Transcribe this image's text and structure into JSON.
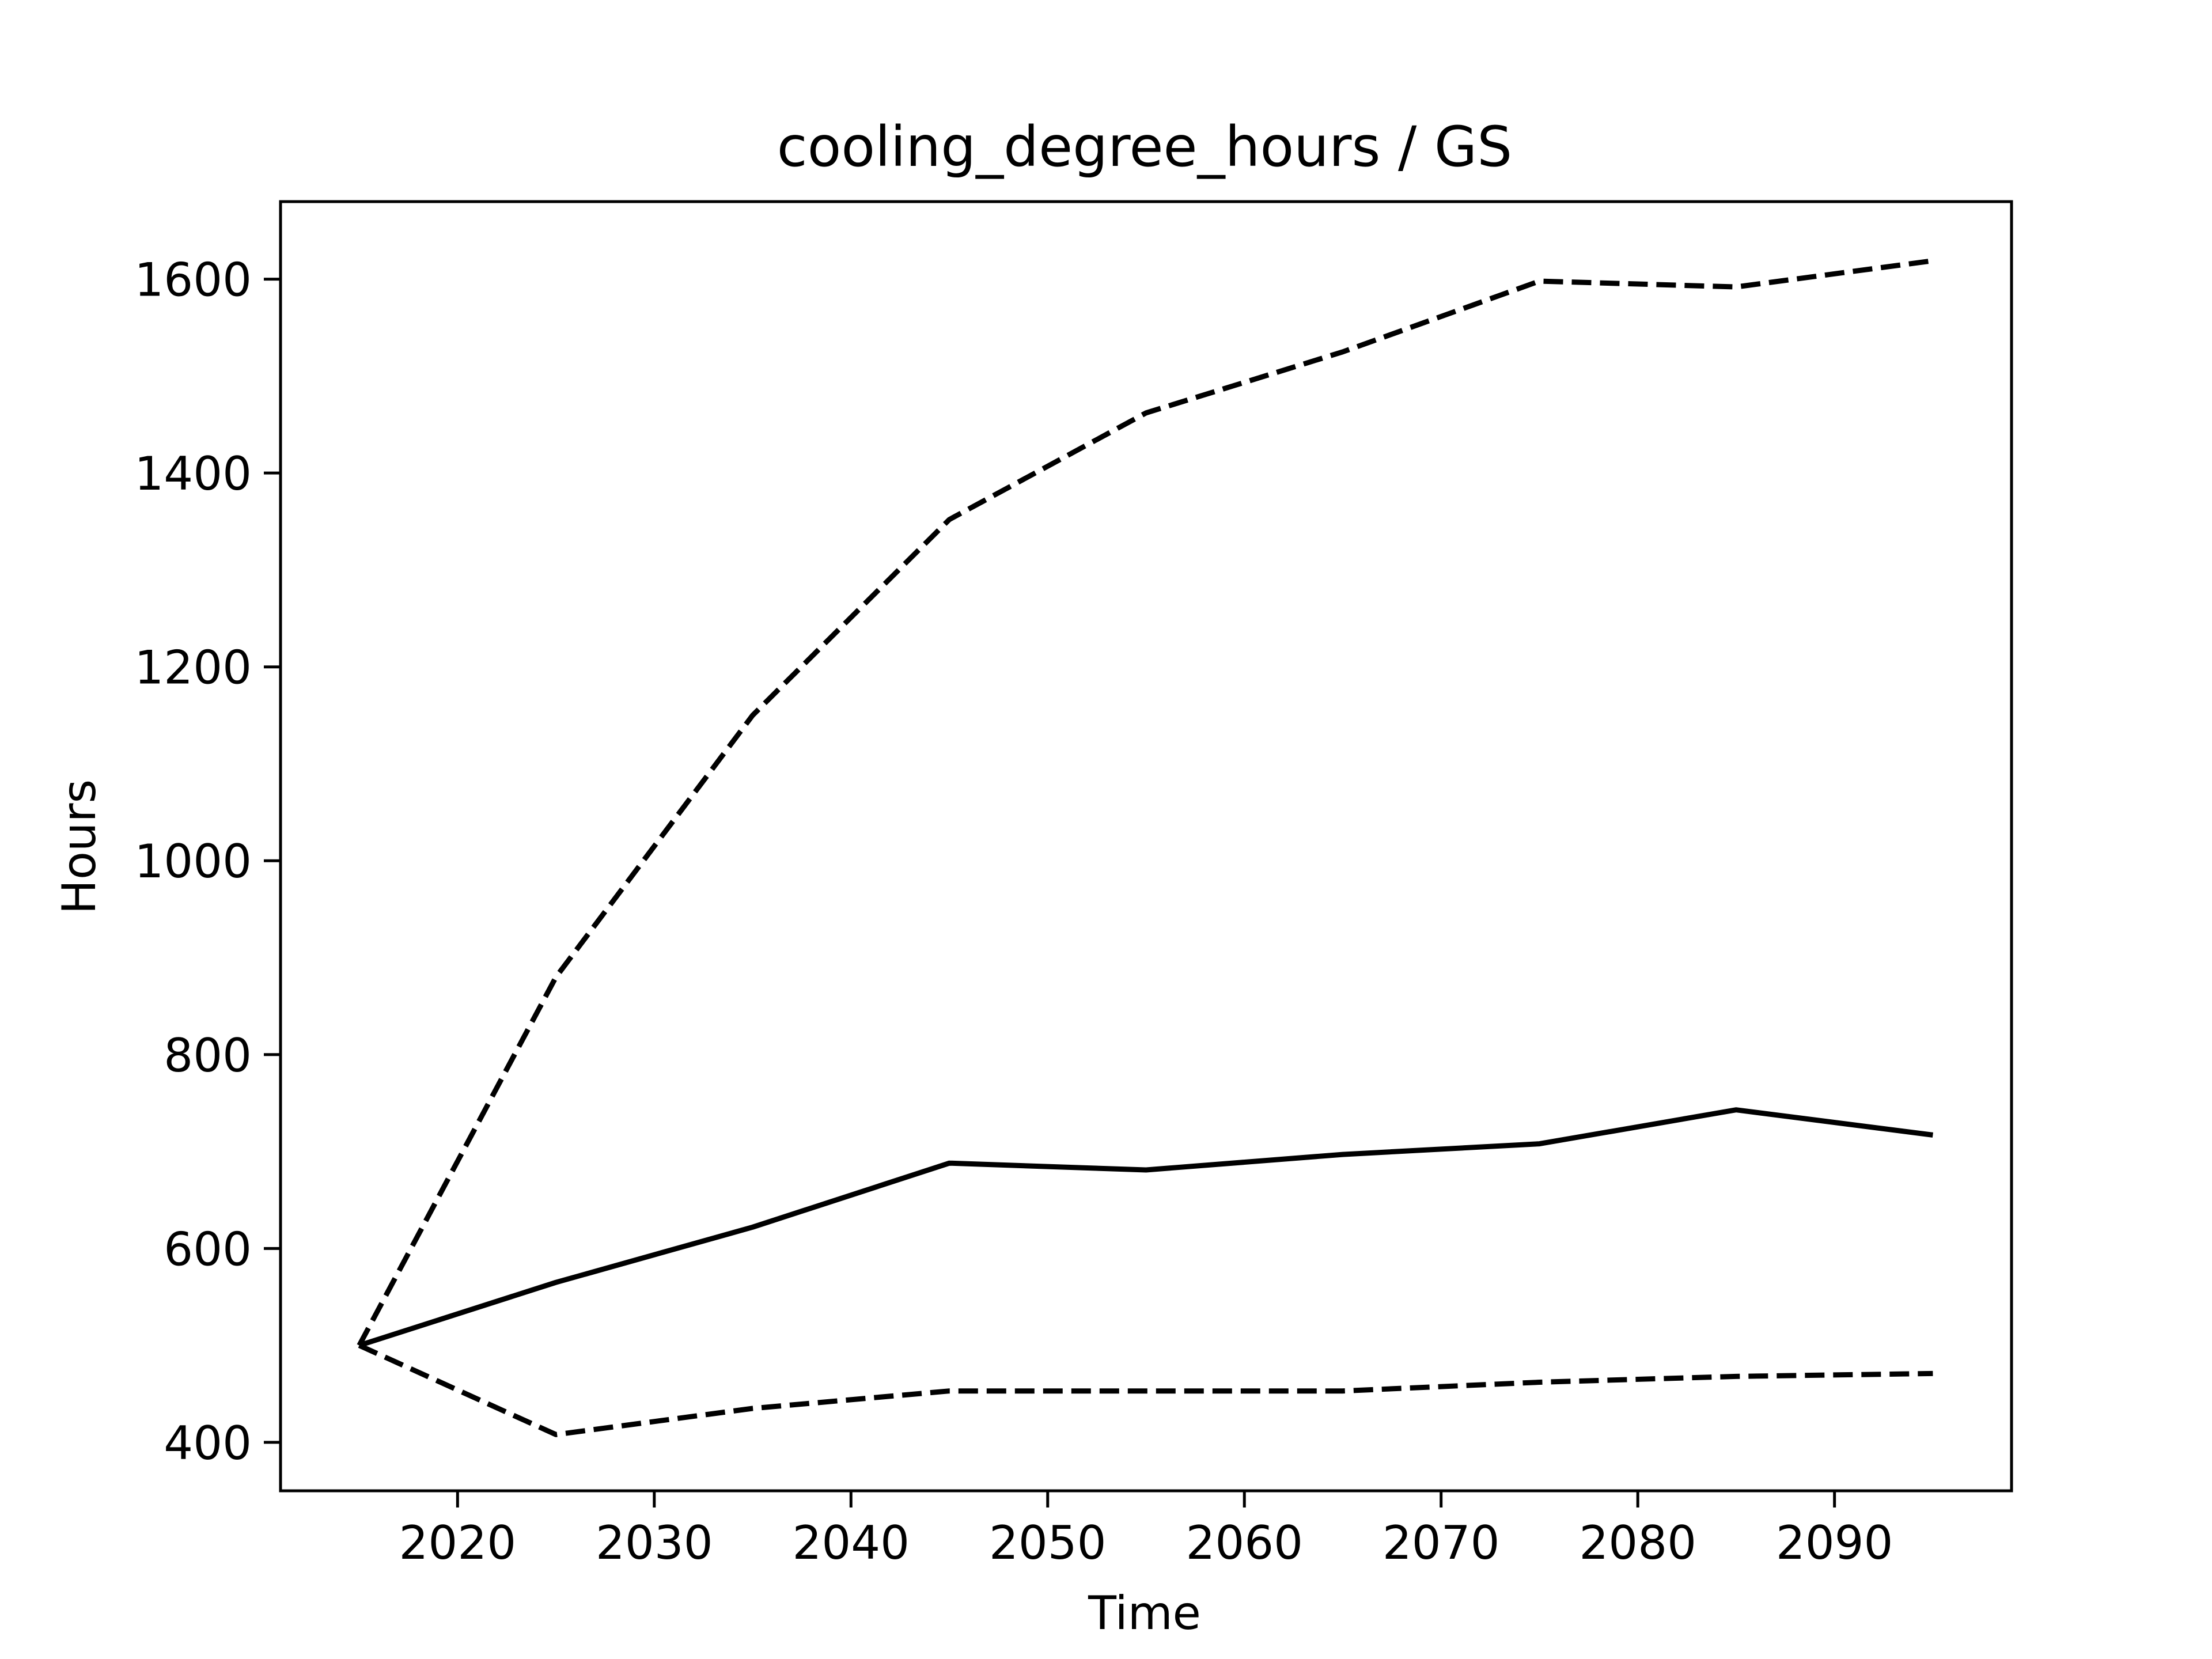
{
  "chart_data": {
    "type": "line",
    "title": "cooling_degree_hours / GS",
    "xlabel": "Time",
    "ylabel": "Hours",
    "xlim": [
      2011,
      2099
    ],
    "ylim": [
      350,
      1680
    ],
    "x_ticks": [
      2020,
      2030,
      2040,
      2050,
      2060,
      2070,
      2080,
      2090
    ],
    "y_ticks": [
      400,
      600,
      800,
      1000,
      1200,
      1400,
      1600
    ],
    "x": [
      2015,
      2025,
      2035,
      2045,
      2055,
      2065,
      2075,
      2085,
      2095
    ],
    "series": [
      {
        "style": "solid",
        "values": [
          500,
          565,
          622,
          688,
          681,
          697,
          708,
          743,
          717
        ]
      },
      {
        "style": "dashed",
        "values": [
          500,
          880,
          1150,
          1352,
          1462,
          1525,
          1598,
          1592,
          1619
        ]
      },
      {
        "style": "dashed",
        "values": [
          500,
          408,
          435,
          453,
          453,
          453,
          462,
          468,
          471
        ]
      }
    ],
    "grid": false,
    "line_color": "#000000"
  }
}
